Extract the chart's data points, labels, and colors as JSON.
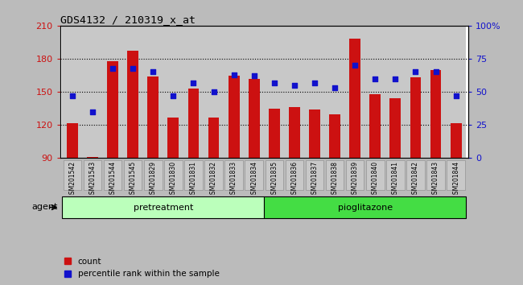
{
  "title": "GDS4132 / 210319_x_at",
  "samples": [
    "GSM201542",
    "GSM201543",
    "GSM201544",
    "GSM201545",
    "GSM201829",
    "GSM201830",
    "GSM201831",
    "GSM201832",
    "GSM201833",
    "GSM201834",
    "GSM201835",
    "GSM201836",
    "GSM201837",
    "GSM201838",
    "GSM201839",
    "GSM201840",
    "GSM201841",
    "GSM201842",
    "GSM201843",
    "GSM201844"
  ],
  "counts": [
    122,
    91,
    178,
    187,
    164,
    127,
    153,
    127,
    165,
    162,
    135,
    136,
    134,
    130,
    198,
    148,
    144,
    163,
    170,
    122
  ],
  "percentile_ranks": [
    47,
    35,
    68,
    68,
    65,
    47,
    57,
    50,
    63,
    62,
    57,
    55,
    57,
    53,
    70,
    60,
    60,
    65,
    65,
    47
  ],
  "groups": [
    "pretreatment",
    "pretreatment",
    "pretreatment",
    "pretreatment",
    "pretreatment",
    "pretreatment",
    "pretreatment",
    "pretreatment",
    "pretreatment",
    "pretreatment",
    "pioglitazone",
    "pioglitazone",
    "pioglitazone",
    "pioglitazone",
    "pioglitazone",
    "pioglitazone",
    "pioglitazone",
    "pioglitazone",
    "pioglitazone",
    "pioglitazone"
  ],
  "bar_color": "#cc1111",
  "dot_color": "#1111cc",
  "bar_bottom": 90,
  "ylim_left": [
    90,
    210
  ],
  "ylim_right": [
    0,
    100
  ],
  "yticks_left": [
    90,
    120,
    150,
    180,
    210
  ],
  "yticks_right": [
    0,
    25,
    50,
    75,
    100
  ],
  "pretreatment_color": "#bbffbb",
  "pioglitazone_color": "#44dd44",
  "fig_bg_color": "#bbbbbb",
  "plot_bg_color": "#ffffff",
  "col_bg_color": "#c8c8c8",
  "agent_label": "agent",
  "legend_count": "count",
  "legend_pct": "percentile rank within the sample"
}
